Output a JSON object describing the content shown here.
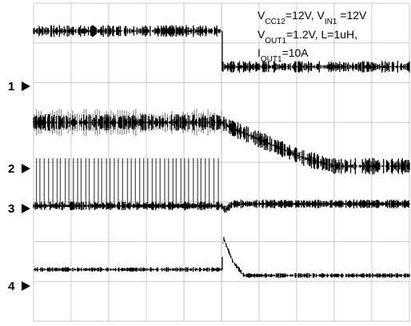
{
  "chart_data": {
    "type": "line",
    "title": "",
    "xlabel": "",
    "ylabel": "",
    "grid": true,
    "grid_divisions": {
      "x": 10,
      "y": 8
    },
    "channel_markers": [
      "1",
      "2",
      "3",
      "4"
    ],
    "annotation": {
      "line1": [
        {
          "t": "V"
        },
        {
          "t": "CC12",
          "sub": true
        },
        {
          "t": "=12V, V"
        },
        {
          "t": "IN1",
          "sub": true
        },
        {
          "t": " =12V"
        }
      ],
      "line2": [
        {
          "t": "V"
        },
        {
          "t": "OUT1",
          "sub": true
        },
        {
          "t": "=1.2V, L=1uH,"
        }
      ],
      "line3": [
        {
          "t": "I"
        },
        {
          "t": "OUT1",
          "sub": true
        },
        {
          "t": "=10A"
        }
      ]
    },
    "x_range": [
      0,
      10
    ],
    "event_time_div": 5.0,
    "series": [
      {
        "channel": "1",
        "description": "flat then steps down at event",
        "points": [
          [
            0,
            7.3
          ],
          [
            5.0,
            7.3
          ],
          [
            5.0,
            6.4
          ],
          [
            10,
            6.4
          ]
        ],
        "noise": 0.08,
        "thickness": 7
      },
      {
        "channel": "2",
        "description": "noisy, decays after event",
        "points": [
          [
            0,
            5.0
          ],
          [
            5.0,
            5.0
          ],
          [
            5.3,
            4.85
          ],
          [
            7.2,
            4.1
          ],
          [
            8.0,
            3.9
          ],
          [
            10,
            3.9
          ]
        ],
        "noise": 0.12,
        "thickness": 9,
        "burst": true
      },
      {
        "channel": "3",
        "description": "switching node, stops switching at event",
        "points": [
          [
            0,
            2.9
          ],
          [
            5.0,
            2.9
          ],
          [
            5.1,
            2.8
          ],
          [
            5.3,
            2.95
          ],
          [
            10,
            2.95
          ]
        ],
        "noise": 0.05,
        "thickness": 6,
        "switching": true,
        "switching_top": 4.1
      },
      {
        "channel": "4",
        "description": "flat, spike at event then decay",
        "points": [
          [
            0,
            1.3
          ],
          [
            5.0,
            1.3
          ],
          [
            5.05,
            2.1
          ],
          [
            5.3,
            1.5
          ],
          [
            5.6,
            1.15
          ],
          [
            10,
            1.15
          ]
        ],
        "noise": 0.03,
        "thickness": 3
      }
    ]
  }
}
